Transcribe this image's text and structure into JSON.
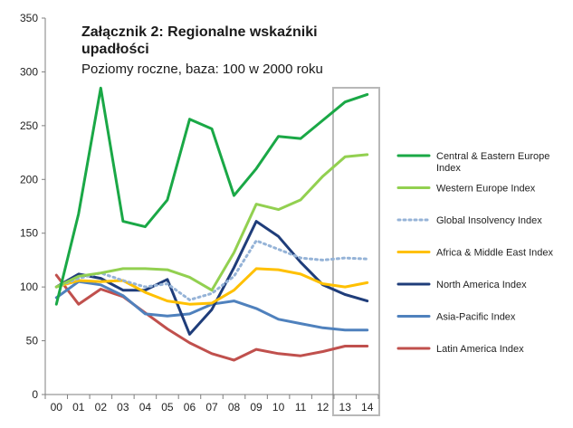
{
  "chart_data": {
    "type": "line",
    "title": "Załącznik 2: Regionalne wskaźniki upadłości",
    "subtitle": "Poziomy roczne, baza: 100 w 2000 roku",
    "categories": [
      "00",
      "01",
      "02",
      "03",
      "04",
      "05",
      "06",
      "07",
      "08",
      "09",
      "10",
      "11",
      "12",
      "13",
      "14"
    ],
    "ylim": [
      0,
      350
    ],
    "yticks": [
      0,
      50,
      100,
      150,
      200,
      250,
      300,
      350
    ],
    "forecast_categories": [
      "13",
      "14"
    ],
    "series": [
      {
        "name": "Central & Eastern Europe Index",
        "color": "#1aa846",
        "dashed": false,
        "values": [
          84,
          168,
          285,
          161,
          156,
          181,
          256,
          247,
          185,
          210,
          240,
          238,
          255,
          272,
          279
        ]
      },
      {
        "name": "Western Europe Index",
        "color": "#92d050",
        "dashed": false,
        "values": [
          100,
          110,
          113,
          117,
          117,
          116,
          109,
          97,
          132,
          177,
          172,
          181,
          203,
          221,
          223
        ]
      },
      {
        "name": "Global Insolvency Index",
        "color": "#95b3d7",
        "dashed": true,
        "values": [
          100,
          108,
          113,
          106,
          100,
          103,
          88,
          94,
          110,
          143,
          135,
          127,
          125,
          127,
          126
        ]
      },
      {
        "name": "Africa & Middle East Index",
        "color": "#ffc000",
        "dashed": false,
        "values": [
          100,
          106,
          105,
          106,
          95,
          87,
          84,
          85,
          97,
          117,
          116,
          112,
          103,
          100,
          104
        ]
      },
      {
        "name": "North America Index",
        "color": "#1f3d7a",
        "dashed": false,
        "values": [
          100,
          112,
          108,
          97,
          97,
          107,
          56,
          79,
          118,
          161,
          147,
          123,
          102,
          93,
          87
        ]
      },
      {
        "name": "Asia-Pacific Index",
        "color": "#4f81bd",
        "dashed": false,
        "values": [
          90,
          105,
          102,
          92,
          75,
          73,
          75,
          84,
          87,
          80,
          70,
          66,
          62,
          60,
          60
        ]
      },
      {
        "name": "Latin America Index",
        "color": "#c0504d",
        "dashed": false,
        "values": [
          111,
          84,
          98,
          91,
          76,
          61,
          48,
          38,
          32,
          42,
          38,
          36,
          40,
          45,
          45
        ]
      }
    ]
  }
}
